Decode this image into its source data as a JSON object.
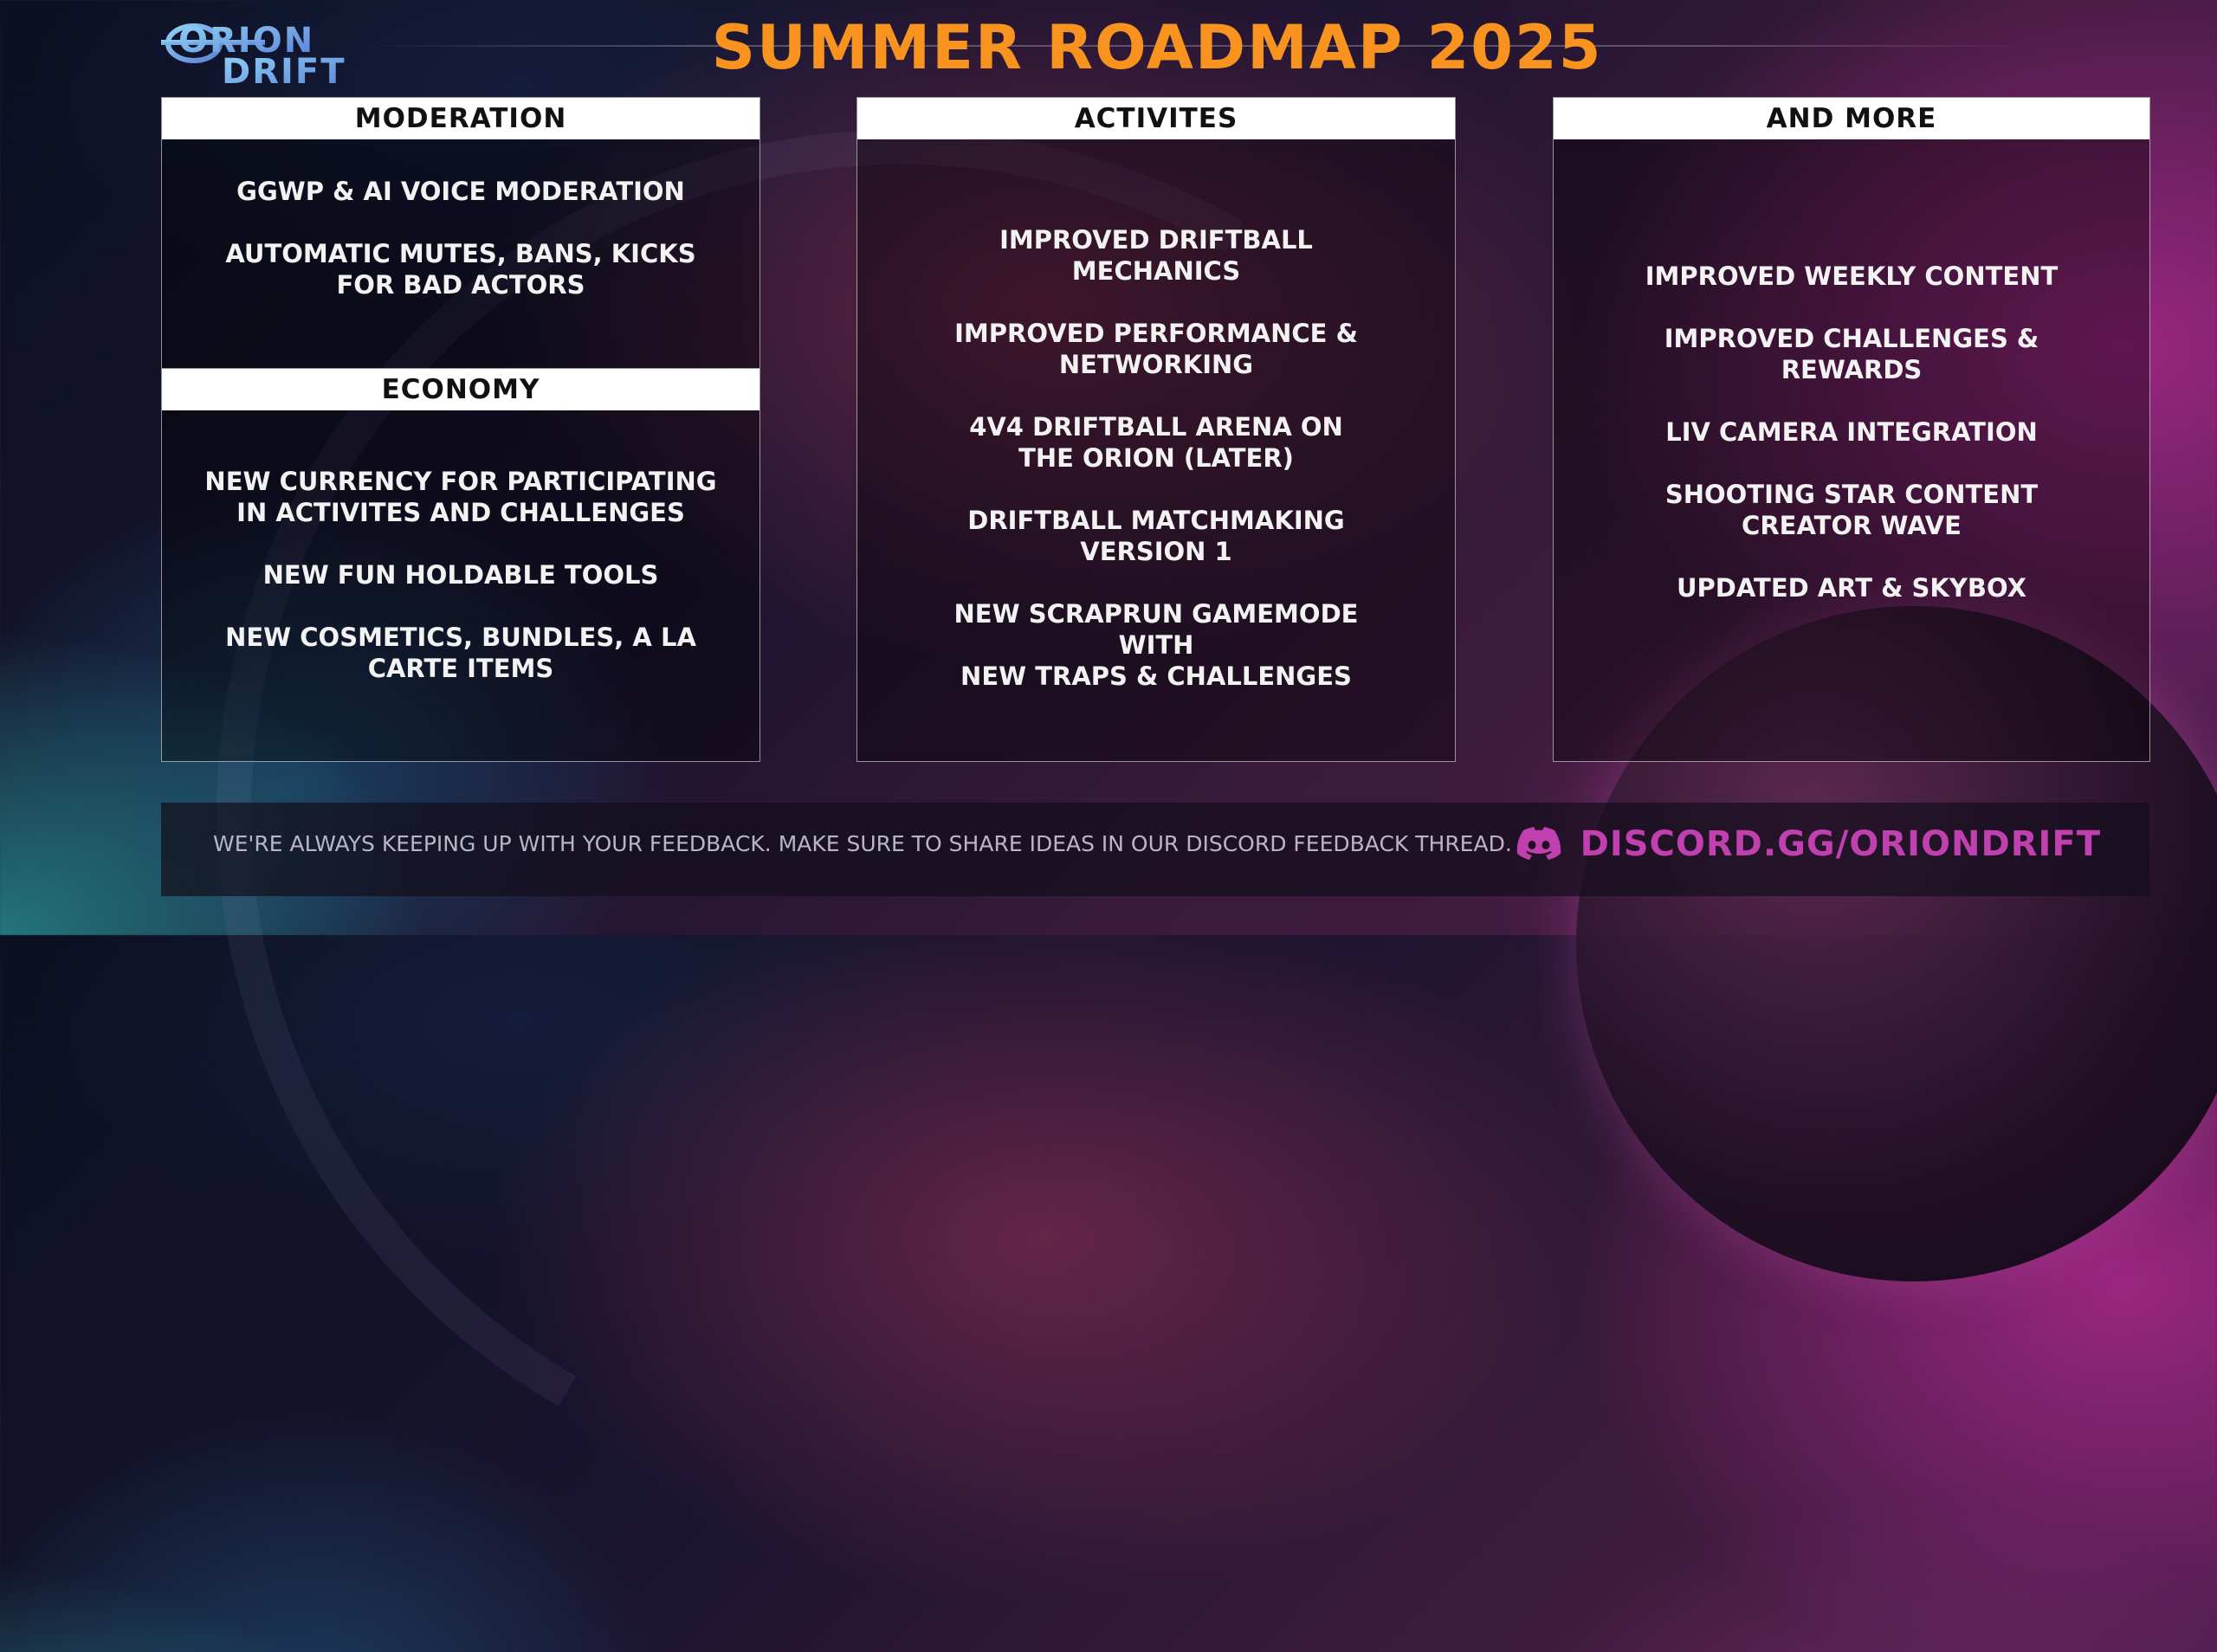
{
  "title": "SUMMER ROADMAP 2025",
  "logo": {
    "line1": "ORION",
    "line2": "DRIFT"
  },
  "panels": {
    "moderation": {
      "header": "MODERATION",
      "items": [
        "GGWP & AI VOICE MODERATION",
        "AUTOMATIC MUTES, BANS, KICKS\nFOR BAD ACTORS"
      ]
    },
    "economy": {
      "header": "ECONOMY",
      "items": [
        "NEW CURRENCY FOR PARTICIPATING\nIN ACTIVITES AND CHALLENGES",
        "NEW FUN HOLDABLE TOOLS",
        "NEW COSMETICS, BUNDLES, A LA\nCARTE ITEMS"
      ]
    },
    "activites": {
      "header": "ACTIVITES",
      "items": [
        "IMPROVED DRIFTBALL\nMECHANICS",
        "IMPROVED PERFORMANCE &\nNETWORKING",
        "4V4 DRIFTBALL ARENA ON\nTHE ORION (LATER)",
        "DRIFTBALL MATCHMAKING\nVERSION 1",
        "NEW SCRAPRUN GAMEMODE\nWITH\nNEW TRAPS & CHALLENGES"
      ]
    },
    "more": {
      "header": "AND MORE",
      "items": [
        "IMPROVED WEEKLY CONTENT",
        "IMPROVED CHALLENGES &\nREWARDS",
        "LIV CAMERA INTEGRATION",
        "SHOOTING STAR CONTENT\nCREATOR WAVE",
        "UPDATED ART & SKYBOX"
      ]
    }
  },
  "footer": {
    "text": "WE'RE ALWAYS KEEPING UP WITH YOUR FEEDBACK. MAKE SURE TO SHARE IDEAS IN OUR DISCORD FEEDBACK THREAD.",
    "discord_link": "DISCORD.GG/ORIONDRIFT",
    "discord_icon": "discord-icon"
  },
  "colors": {
    "title": "#f7931e",
    "discord": "#c040b0",
    "logo": "#6fb8e8"
  }
}
